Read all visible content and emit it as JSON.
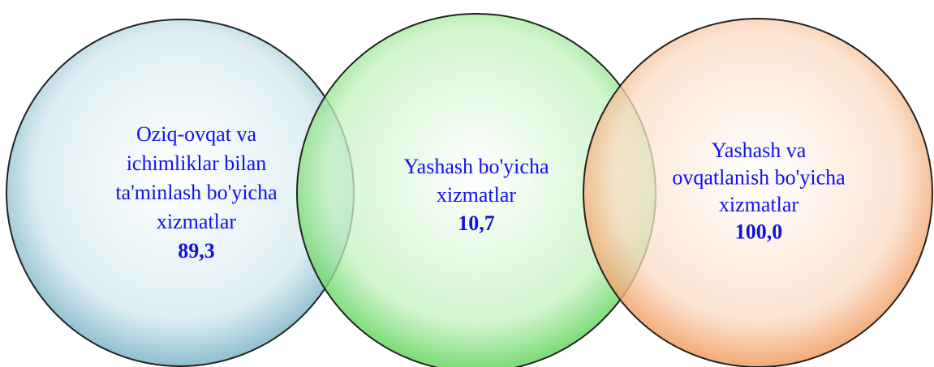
{
  "nodes": [
    {
      "label": [
        "Oziq-ovqat va",
        "ichimliklar bilan",
        "ta'minlash bo'yicha",
        "xizmatlar"
      ],
      "value": "89,3"
    },
    {
      "label": [
        "Yashash bo'yicha",
        "xizmatlar"
      ],
      "value": "10,7"
    },
    {
      "label": [
        "Yashash va",
        "ovqatlanish bo'yicha",
        "xizmatlar"
      ],
      "value": "100,0"
    }
  ]
}
